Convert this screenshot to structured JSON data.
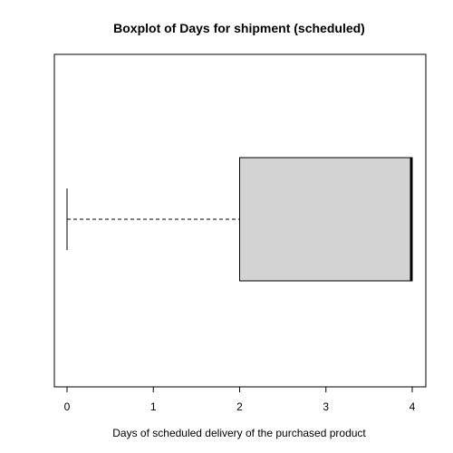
{
  "chart_data": {
    "type": "boxplot",
    "orientation": "horizontal",
    "title": "Boxplot of Days for shipment (scheduled)",
    "xlabel": "Days of scheduled delivery of the purchased product",
    "ylabel": "",
    "xlim": [
      0,
      4
    ],
    "x_ticks": [
      0,
      1,
      2,
      3,
      4
    ],
    "x_tick_labels": [
      "0",
      "1",
      "2",
      "3",
      "4"
    ],
    "grid": false,
    "legend": "none",
    "box": {
      "min": 0,
      "q1": 2,
      "median": 4,
      "q3": 4,
      "max": 4
    },
    "colors": {
      "box_fill": "#d3d3d3",
      "stroke": "#000000"
    }
  }
}
